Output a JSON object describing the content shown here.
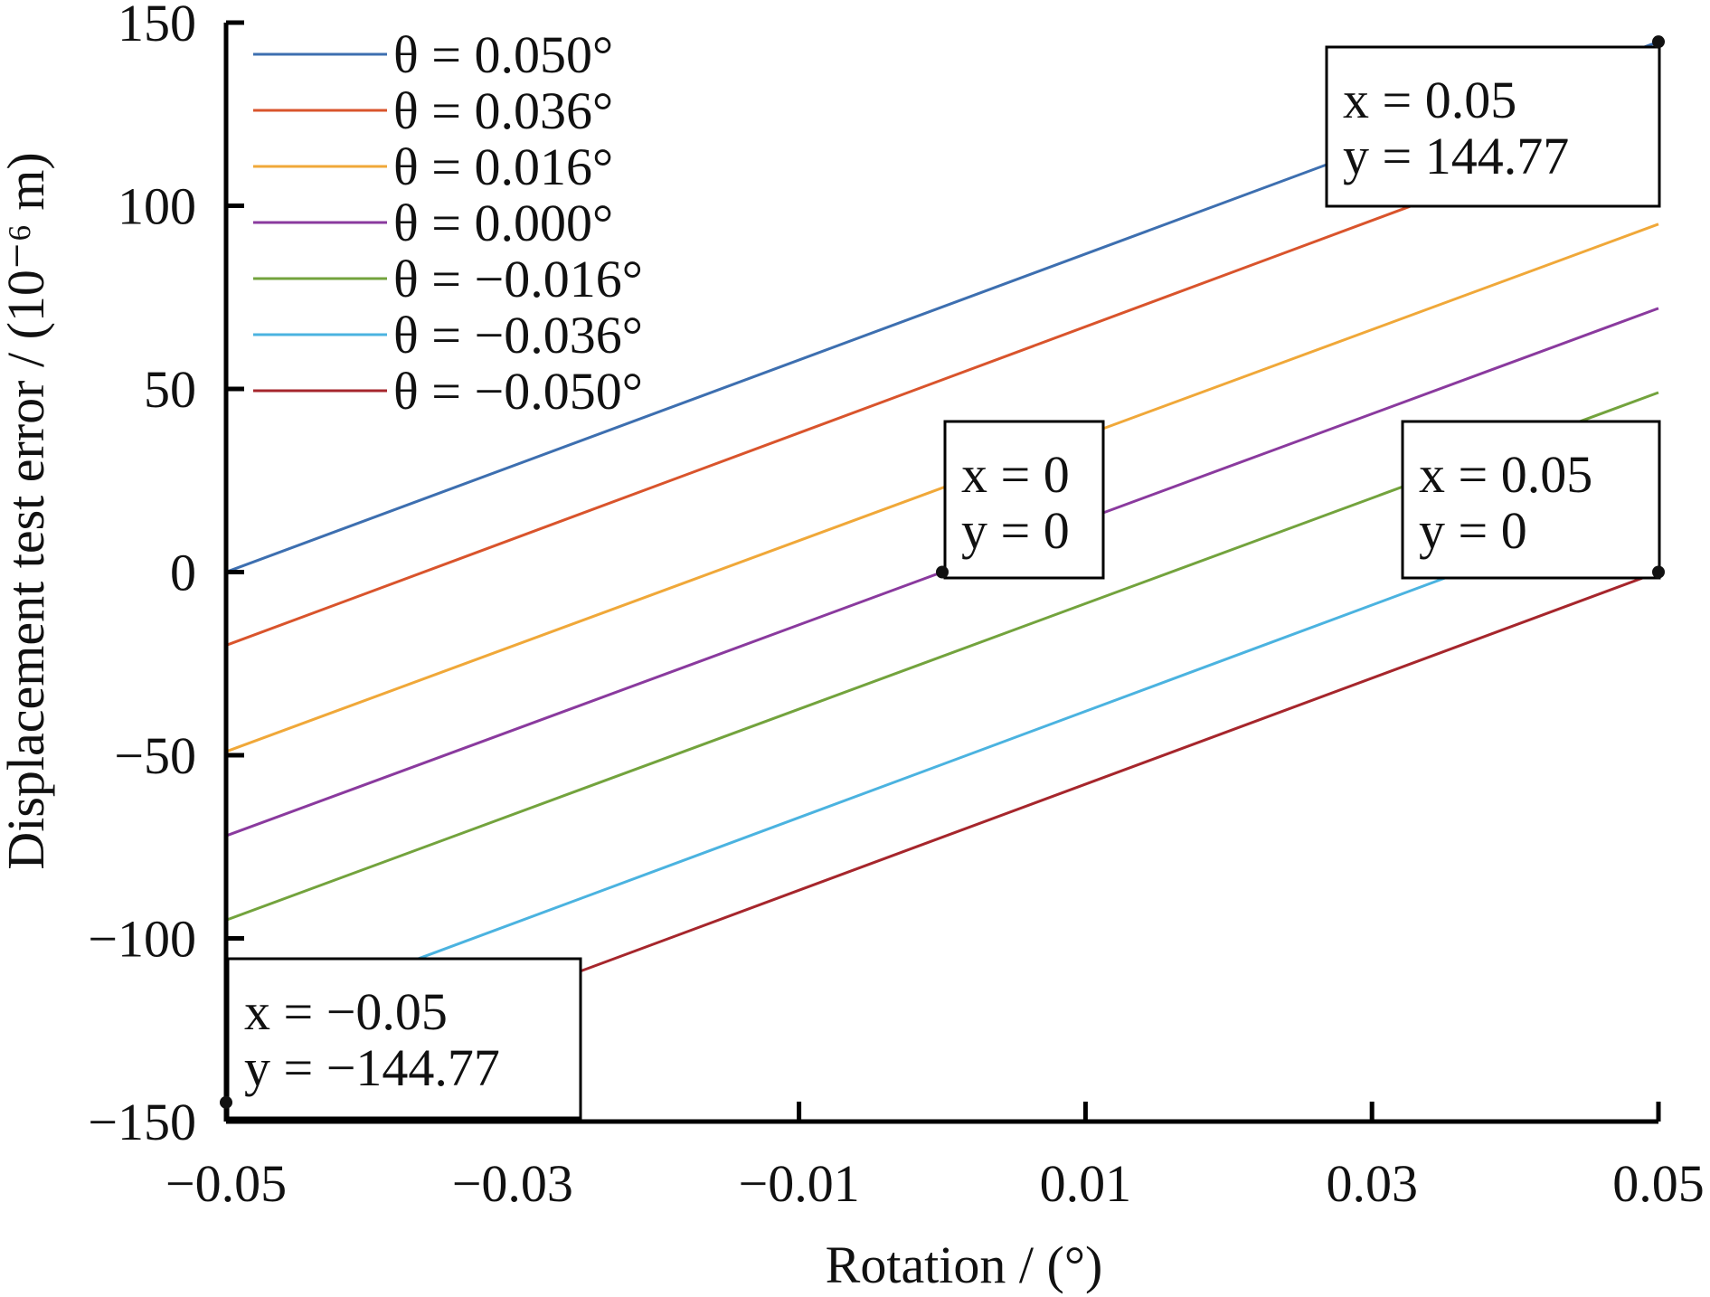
{
  "chart_data": {
    "type": "line",
    "title": "",
    "xlabel": "Rotation / (°)",
    "ylabel": "Displacement test error / (10⁻⁶ m)",
    "xlim": [
      -0.05,
      0.05
    ],
    "ylim": [
      -150,
      150
    ],
    "xticks": [
      -0.05,
      -0.03,
      -0.01,
      0.01,
      0.03,
      0.05
    ],
    "xtick_labels": [
      "−0.05",
      "−0.03",
      "−0.01",
      "0.01",
      "0.03",
      "0.05"
    ],
    "yticks": [
      150,
      100,
      50,
      0,
      -50,
      -100,
      -150
    ],
    "ytick_labels": [
      "150",
      "100",
      "50",
      "0",
      "−50",
      "−100",
      "−150"
    ],
    "grid": false,
    "legend_position": "top-left",
    "x": [
      -0.05,
      0.05
    ],
    "series": [
      {
        "name": "θ = 0.050°",
        "color": "#3d6fb0",
        "values": [
          0,
          144.77
        ]
      },
      {
        "name": "θ = 0.036°",
        "color": "#d9542c",
        "values": [
          -20,
          125
        ]
      },
      {
        "name": "θ = 0.016°",
        "color": "#f0a839",
        "values": [
          -49,
          95
        ]
      },
      {
        "name": "θ = 0.000°",
        "color": "#8a3a9e",
        "values": [
          -72,
          72
        ]
      },
      {
        "name": "θ = −0.016°",
        "color": "#73a33d",
        "values": [
          -95,
          49
        ]
      },
      {
        "name": "θ = −0.036°",
        "color": "#4bb3e0",
        "values": [
          -125,
          20
        ]
      },
      {
        "name": "θ = −0.050°",
        "color": "#a6262c",
        "values": [
          -144.77,
          0
        ]
      }
    ],
    "annotations": [
      {
        "x": 0.05,
        "y": 144.77,
        "x_text": "x = 0.05",
        "y_text": "y = 144.77"
      },
      {
        "x": 0,
        "y": 0,
        "x_text": "x = 0",
        "y_text": "y = 0"
      },
      {
        "x": 0.05,
        "y": 0,
        "x_text": "x = 0.05",
        "y_text": "y = 0"
      },
      {
        "x": -0.05,
        "y": -144.77,
        "x_text": "x = −0.05",
        "y_text": "y = −144.77"
      }
    ]
  }
}
